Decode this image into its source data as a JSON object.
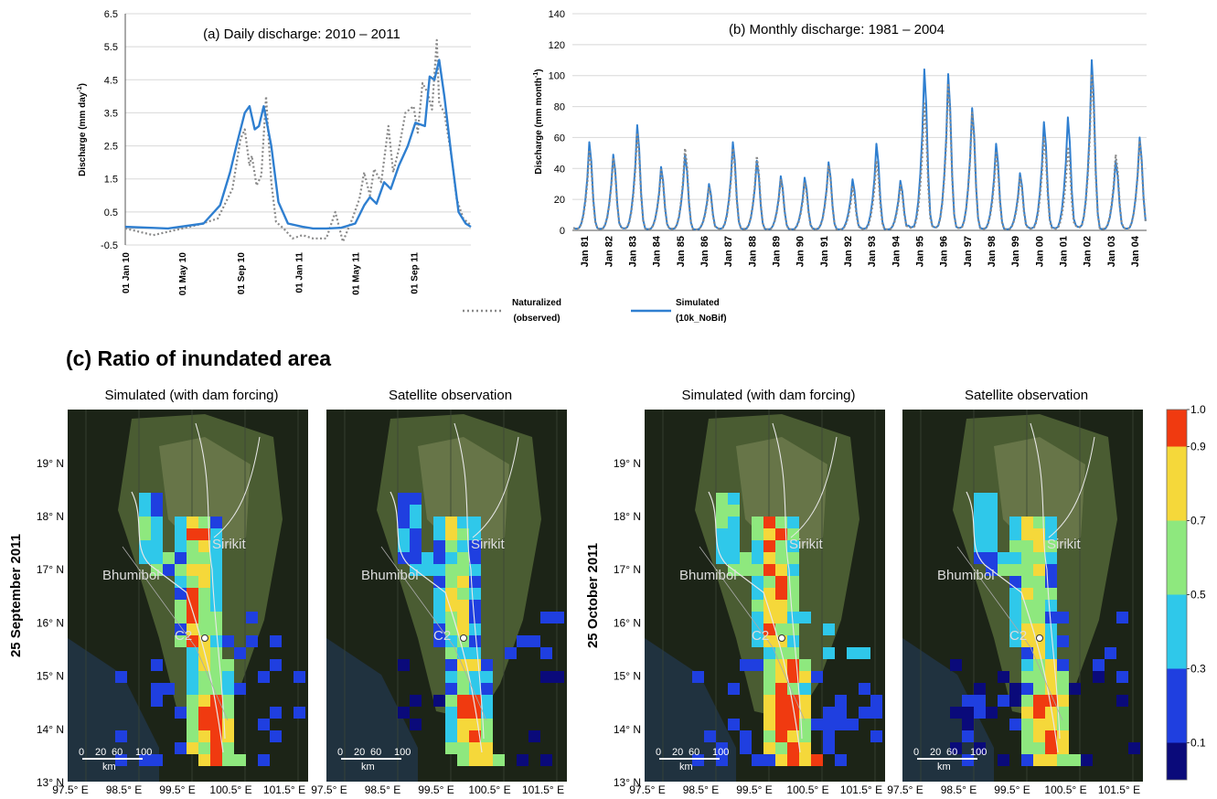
{
  "panel_a": {
    "title": "(a) Daily discharge: 2010 – 2011",
    "ylabel": "Discharge (mm day",
    "ylabel_sup": "-1",
    "ylabel_end": ")",
    "yticks": [
      "6.5",
      "5.5",
      "4.5",
      "3.5",
      "2.5",
      "1.5",
      "0.5",
      "-0.5"
    ],
    "xticks": [
      "01 Jan 10",
      "01 May 10",
      "01 Sep 10",
      "01 Jan 11",
      "01 May 11",
      "01 Sep 11"
    ]
  },
  "panel_b": {
    "title": "(b) Monthly discharge: 1981 – 2004",
    "ylabel": "Discharge (mm month",
    "ylabel_sup": "-1",
    "ylabel_end": ")",
    "yticks": [
      "140",
      "120",
      "100",
      "80",
      "60",
      "40",
      "20",
      "0"
    ],
    "xticks": [
      "Jan 81",
      "Jan 82",
      "Jan 83",
      "Jan 84",
      "Jan 85",
      "Jan 86",
      "Jan 87",
      "Jan 88",
      "Jan 89",
      "Jan 90",
      "Jan 91",
      "Jan 92",
      "Jan 93",
      "Jan 94",
      "Jan 95",
      "Jan 96",
      "Jan 97",
      "Jan 98",
      "Jan 99",
      "Jan 00",
      "Jan 01",
      "Jan 02",
      "Jan 03",
      "Jan 04"
    ]
  },
  "legend": {
    "observed_line1": "Naturalized",
    "observed_line2": "(observed)",
    "simulated_line1": "Simulated",
    "simulated_line2": "(10k_NoBif)"
  },
  "colors": {
    "simulated": "#2f7fd0",
    "observed": "#8a8a8a"
  },
  "panel_c": {
    "title": "(c) Ratio of inundated area",
    "map_titles": [
      "Simulated (with dam forcing)",
      "Satellite observation",
      "Simulated (with dam forcing)",
      "Satellite observation"
    ],
    "dates": [
      "25 September 2011",
      "25 October 2011"
    ],
    "lat_ticks": [
      "19° N",
      "18° N",
      "17° N",
      "16° N",
      "15° N",
      "14° N",
      "13° N"
    ],
    "lon_ticks": [
      "97.5° E",
      "98.5° E",
      "99.5° E",
      "100.5° E",
      "101.5° E"
    ],
    "place_labels": {
      "dam1": "Sirikit",
      "dam2": "Bhumibol",
      "station": "C2"
    },
    "scalebar": {
      "ticks": [
        "0",
        "20",
        "60",
        "100"
      ],
      "unit": "km"
    },
    "colorbar_ticks": [
      "1.0",
      "0.9",
      "0.7",
      "0.5",
      "0.3",
      "0.1"
    ],
    "colorbar_colors": [
      "#0a0a7a",
      "#1f3fe0",
      "#2fc8ea",
      "#8ee87e",
      "#f5d83a",
      "#f03a10"
    ]
  },
  "chart_data": [
    {
      "type": "line",
      "title": "(a) Daily discharge: 2010 – 2011",
      "ylabel": "Discharge (mm day-1)",
      "ylim": [
        -0.5,
        6.5
      ],
      "x_range": [
        "2010-01-01",
        "2011-12-31"
      ],
      "series": [
        {
          "name": "Naturalized (observed)",
          "style": "dotted",
          "x": [
            "2010-01-01",
            "2010-03-01",
            "2010-06-01",
            "2010-07-15",
            "2010-08-15",
            "2010-09-01",
            "2010-09-10",
            "2010-09-20",
            "2010-09-25",
            "2010-10-05",
            "2010-10-15",
            "2010-10-25",
            "2010-11-05",
            "2010-11-15",
            "2010-12-01",
            "2010-12-20",
            "2011-01-10",
            "2011-02-01",
            "2011-03-01",
            "2011-03-20",
            "2011-04-05",
            "2011-04-25",
            "2011-05-10",
            "2011-05-20",
            "2011-06-01",
            "2011-06-10",
            "2011-06-25",
            "2011-07-10",
            "2011-07-20",
            "2011-08-01",
            "2011-08-15",
            "2011-09-01",
            "2011-09-10",
            "2011-09-20",
            "2011-10-01",
            "2011-10-10",
            "2011-10-20",
            "2011-10-25",
            "2011-11-05",
            "2011-11-20",
            "2011-12-01",
            "2011-12-15",
            "2011-12-31"
          ],
          "values": [
            0.0,
            -0.2,
            0.1,
            0.3,
            1.2,
            2.7,
            3.0,
            1.9,
            2.2,
            1.3,
            1.6,
            4.0,
            1.4,
            0.2,
            0.0,
            -0.3,
            -0.2,
            -0.3,
            -0.3,
            0.5,
            -0.4,
            0.3,
            0.9,
            1.7,
            1.0,
            1.8,
            1.4,
            3.1,
            1.7,
            2.4,
            3.5,
            3.7,
            2.9,
            4.4,
            4.1,
            3.6,
            5.7,
            3.8,
            3.5,
            2.2,
            0.9,
            0.3,
            0.1
          ]
        },
        {
          "name": "Simulated (10k_NoBif)",
          "style": "solid",
          "x": [
            "2010-01-01",
            "2010-04-01",
            "2010-06-15",
            "2010-07-20",
            "2010-08-10",
            "2010-08-25",
            "2010-09-10",
            "2010-09-20",
            "2010-10-01",
            "2010-10-10",
            "2010-10-20",
            "2010-11-05",
            "2010-11-20",
            "2010-12-10",
            "2011-01-10",
            "2011-02-01",
            "2011-03-01",
            "2011-04-01",
            "2011-05-01",
            "2011-05-20",
            "2011-06-01",
            "2011-06-15",
            "2011-07-01",
            "2011-07-15",
            "2011-08-01",
            "2011-08-20",
            "2011-09-05",
            "2011-09-25",
            "2011-10-05",
            "2011-10-15",
            "2011-10-25",
            "2011-11-05",
            "2011-11-20",
            "2011-12-05",
            "2011-12-20",
            "2011-12-31"
          ],
          "values": [
            0.05,
            0.0,
            0.15,
            0.7,
            1.7,
            2.6,
            3.5,
            3.7,
            3.0,
            3.1,
            3.7,
            2.5,
            0.8,
            0.15,
            0.05,
            0.0,
            0.0,
            0.02,
            0.15,
            0.7,
            0.95,
            0.75,
            1.4,
            1.2,
            1.9,
            2.5,
            3.2,
            3.1,
            4.6,
            4.5,
            5.1,
            4.0,
            2.2,
            0.5,
            0.15,
            0.05
          ]
        }
      ]
    },
    {
      "type": "line",
      "title": "(b) Monthly discharge: 1981 – 2004",
      "ylabel": "Discharge (mm month-1)",
      "ylim": [
        0,
        140
      ],
      "categories": [
        "Jan 81",
        "Jan 82",
        "Jan 83",
        "Jan 84",
        "Jan 85",
        "Jan 86",
        "Jan 87",
        "Jan 88",
        "Jan 89",
        "Jan 90",
        "Jan 91",
        "Jan 92",
        "Jan 93",
        "Jan 94",
        "Jan 95",
        "Jan 96",
        "Jan 97",
        "Jan 98",
        "Jan 99",
        "Jan 00",
        "Jan 01",
        "Jan 02",
        "Jan 03",
        "Jan 04"
      ],
      "series": [
        {
          "name": "Simulated (10k_NoBif)",
          "style": "solid",
          "annual_peaks": [
            57,
            49,
            68,
            41,
            49,
            30,
            57,
            45,
            35,
            34,
            44,
            33,
            56,
            32,
            104,
            101,
            79,
            56,
            37,
            70,
            73,
            110,
            45,
            60
          ]
        },
        {
          "name": "Naturalized (observed)",
          "style": "dotted",
          "annual_peaks": [
            52,
            47,
            63,
            39,
            53,
            28,
            53,
            48,
            33,
            31,
            42,
            28,
            45,
            29,
            82,
            95,
            76,
            50,
            34,
            60,
            54,
            101,
            49,
            58
          ]
        }
      ]
    }
  ]
}
